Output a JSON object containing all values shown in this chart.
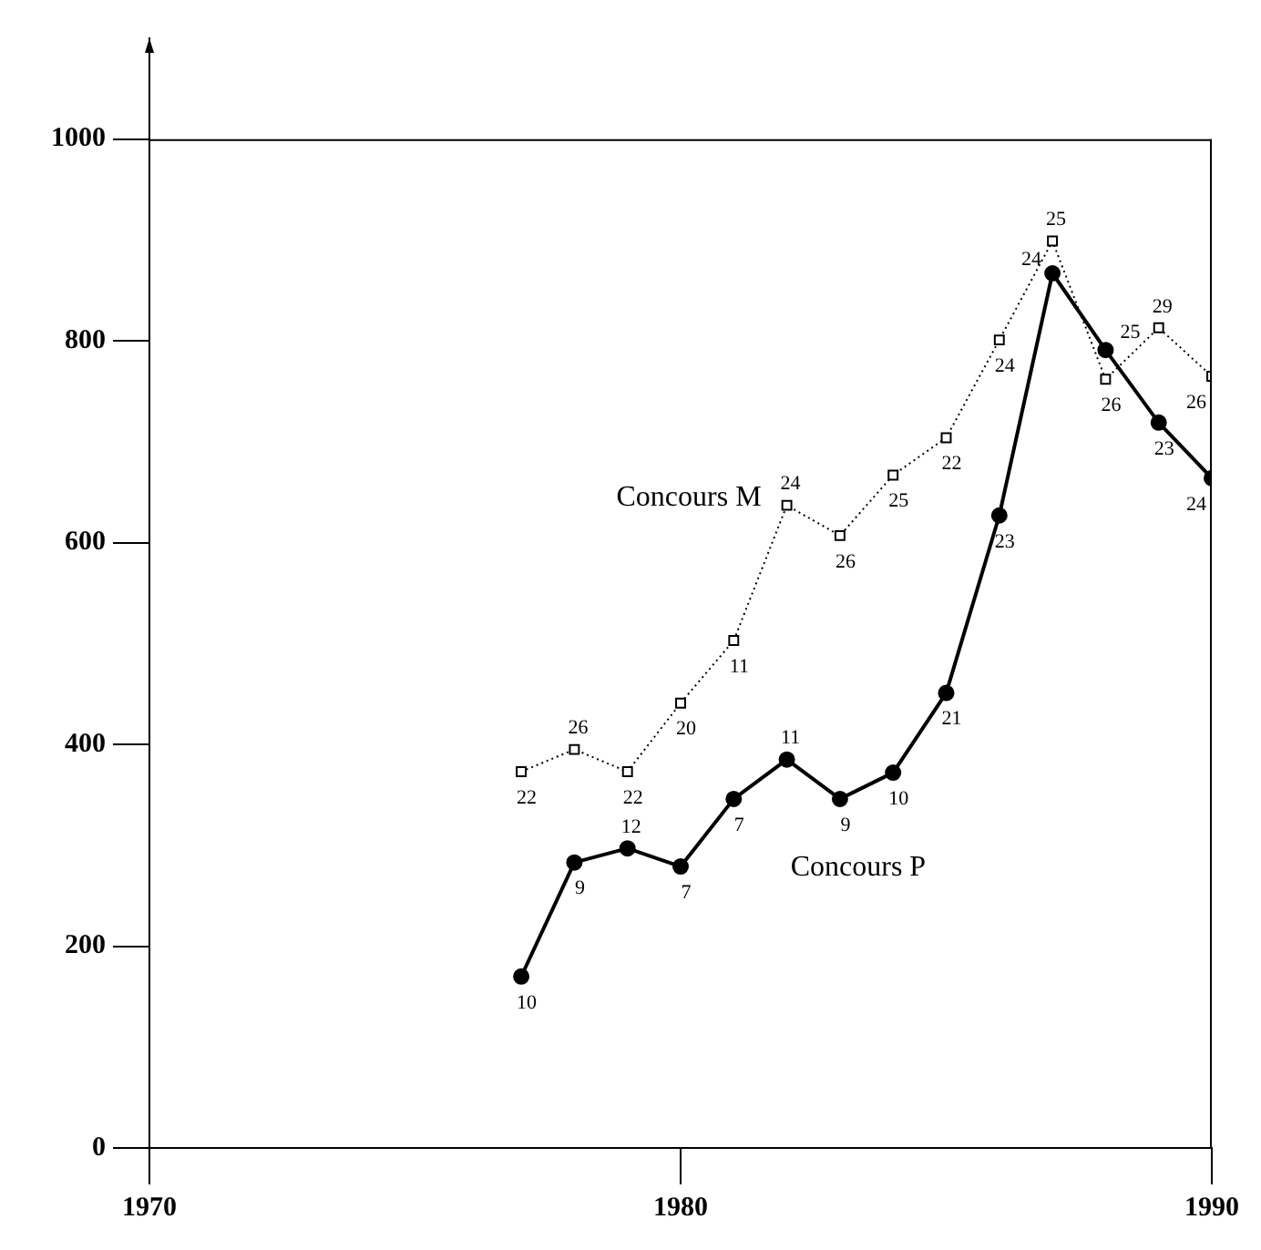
{
  "chart_data": {
    "type": "line",
    "x": [
      1977,
      1978,
      1979,
      1980,
      1981,
      1982,
      1983,
      1984,
      1985,
      1986,
      1987,
      1988,
      1989,
      1990
    ],
    "series": [
      {
        "name": "Concours M",
        "color": "#000000",
        "marker": "square",
        "line_style": "dotted",
        "values": [
          373,
          395,
          373,
          441,
          503,
          637,
          607,
          667,
          704,
          801,
          899,
          762,
          813,
          765
        ]
      },
      {
        "name": "Concours P",
        "color": "#000000",
        "marker": "circle",
        "line_style": "solid",
        "values": [
          170,
          283,
          297,
          279,
          346,
          385,
          346,
          372,
          451,
          627,
          867,
          791,
          719,
          664
        ]
      }
    ],
    "annotations": [
      {
        "text": "22",
        "x": 1977,
        "y": 373
      },
      {
        "text": "26",
        "x": 1978,
        "y": 395
      },
      {
        "text": "22",
        "x": 1979,
        "y": 373
      },
      {
        "text": "20",
        "x": 1980,
        "y": 441
      },
      {
        "text": "11",
        "x": 1981,
        "y": 503
      },
      {
        "text": "24",
        "x": 1982,
        "y": 637
      },
      {
        "text": "26",
        "x": 1983,
        "y": 607
      },
      {
        "text": "25",
        "x": 1984,
        "y": 667
      },
      {
        "text": "22",
        "x": 1985,
        "y": 704
      },
      {
        "text": "24",
        "x": 1986,
        "y": 801
      },
      {
        "text": "25",
        "x": 1987,
        "y": 899
      },
      {
        "text": "26",
        "x": 1988,
        "y": 762
      },
      {
        "text": "29",
        "x": 1989,
        "y": 813
      },
      {
        "text": "26",
        "x": 1990,
        "y": 765
      },
      {
        "text": "10",
        "x": 1977,
        "y": 170
      },
      {
        "text": "9",
        "x": 1978,
        "y": 283
      },
      {
        "text": "12",
        "x": 1979,
        "y": 297
      },
      {
        "text": "7",
        "x": 1980,
        "y": 279
      },
      {
        "text": "7",
        "x": 1981,
        "y": 346
      },
      {
        "text": "11",
        "x": 1982,
        "y": 385
      },
      {
        "text": "9",
        "x": 1983,
        "y": 346
      },
      {
        "text": "10",
        "x": 1984,
        "y": 372
      },
      {
        "text": "21",
        "x": 1985,
        "y": 451
      },
      {
        "text": "23",
        "x": 1986,
        "y": 627
      },
      {
        "text": "24",
        "x": 1987,
        "y": 867
      },
      {
        "text": "25",
        "x": 1988,
        "y": 791
      },
      {
        "text": "23",
        "x": 1989,
        "y": 719
      },
      {
        "text": "24",
        "x": 1990,
        "y": 664
      }
    ],
    "xlim": [
      1970,
      1990
    ],
    "xticks": [
      1970,
      1980,
      1990
    ],
    "ylim": [
      0,
      1100
    ],
    "yticks": [
      0,
      200,
      400,
      600,
      800,
      1000
    ],
    "ref_lines": [
      {
        "axis": "y",
        "value": 1000,
        "color": "#000000"
      }
    ],
    "grid": false,
    "legend": false
  }
}
